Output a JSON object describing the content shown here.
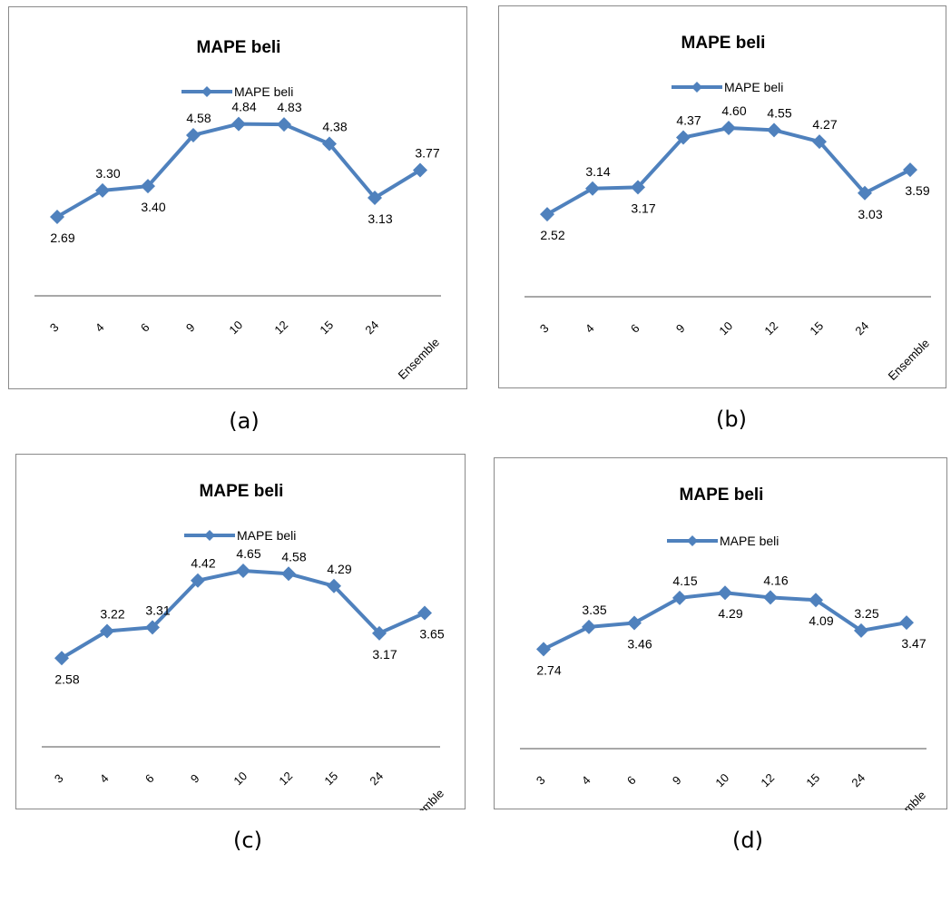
{
  "chart_data": [
    {
      "type": "line",
      "title": "MAPE beli",
      "categories": [
        "3",
        "4",
        "6",
        "9",
        "10",
        "12",
        "15",
        "24",
        "Ensemble"
      ],
      "series": [
        {
          "name": "MAPE beli",
          "values": [
            2.69,
            3.3,
            3.4,
            4.58,
            4.84,
            4.83,
            4.38,
            3.13,
            3.77
          ]
        }
      ],
      "value_labels": [
        "2.69",
        "3.30",
        "3.40",
        "4.58",
        "4.84",
        "4.83",
        "4.38",
        "3.13",
        "3.77"
      ],
      "caption": "(a)",
      "legend": "top-center",
      "grid": false,
      "series_color": "#4F81BD"
    },
    {
      "type": "line",
      "title": "MAPE beli",
      "categories": [
        "3",
        "4",
        "6",
        "9",
        "10",
        "12",
        "15",
        "24",
        "Ensemble"
      ],
      "series": [
        {
          "name": "MAPE beli",
          "values": [
            2.52,
            3.14,
            3.17,
            4.37,
            4.6,
            4.55,
            4.27,
            3.03,
            3.59
          ]
        }
      ],
      "value_labels": [
        "2.52",
        "3.14",
        "3.17",
        "4.37",
        "4.60",
        "4.55",
        "4.27",
        "3.03",
        "3.59"
      ],
      "caption": "(b)",
      "legend": "top-center",
      "grid": false,
      "series_color": "#4F81BD"
    },
    {
      "type": "line",
      "title": "MAPE beli",
      "categories": [
        "3",
        "4",
        "6",
        "9",
        "10",
        "12",
        "15",
        "24",
        "Ensemble"
      ],
      "series": [
        {
          "name": "MAPE beli",
          "values": [
            2.58,
            3.22,
            3.31,
            4.42,
            4.65,
            4.58,
            4.29,
            3.17,
            3.65
          ]
        }
      ],
      "value_labels": [
        "2.58",
        "3.22",
        "3.31",
        "4.42",
        "4.65",
        "4.58",
        "4.29",
        "3.17",
        "3.65"
      ],
      "caption": "(c)",
      "legend": "top-center",
      "grid": false,
      "series_color": "#4F81BD"
    },
    {
      "type": "line",
      "title": "MAPE beli",
      "categories": [
        "3",
        "4",
        "6",
        "9",
        "10",
        "12",
        "15",
        "24",
        "Ensemble"
      ],
      "series": [
        {
          "name": "MAPE beli",
          "values": [
            2.74,
            3.35,
            3.46,
            4.15,
            4.29,
            4.16,
            4.09,
            3.25,
            3.47
          ]
        }
      ],
      "value_labels": [
        "2.74",
        "3.35",
        "3.46",
        "4.15",
        "4.29",
        "4.16",
        "4.09",
        "3.25",
        "3.47"
      ],
      "caption": "(d)",
      "legend": "top-center",
      "grid": false,
      "series_color": "#4F81BD"
    }
  ]
}
